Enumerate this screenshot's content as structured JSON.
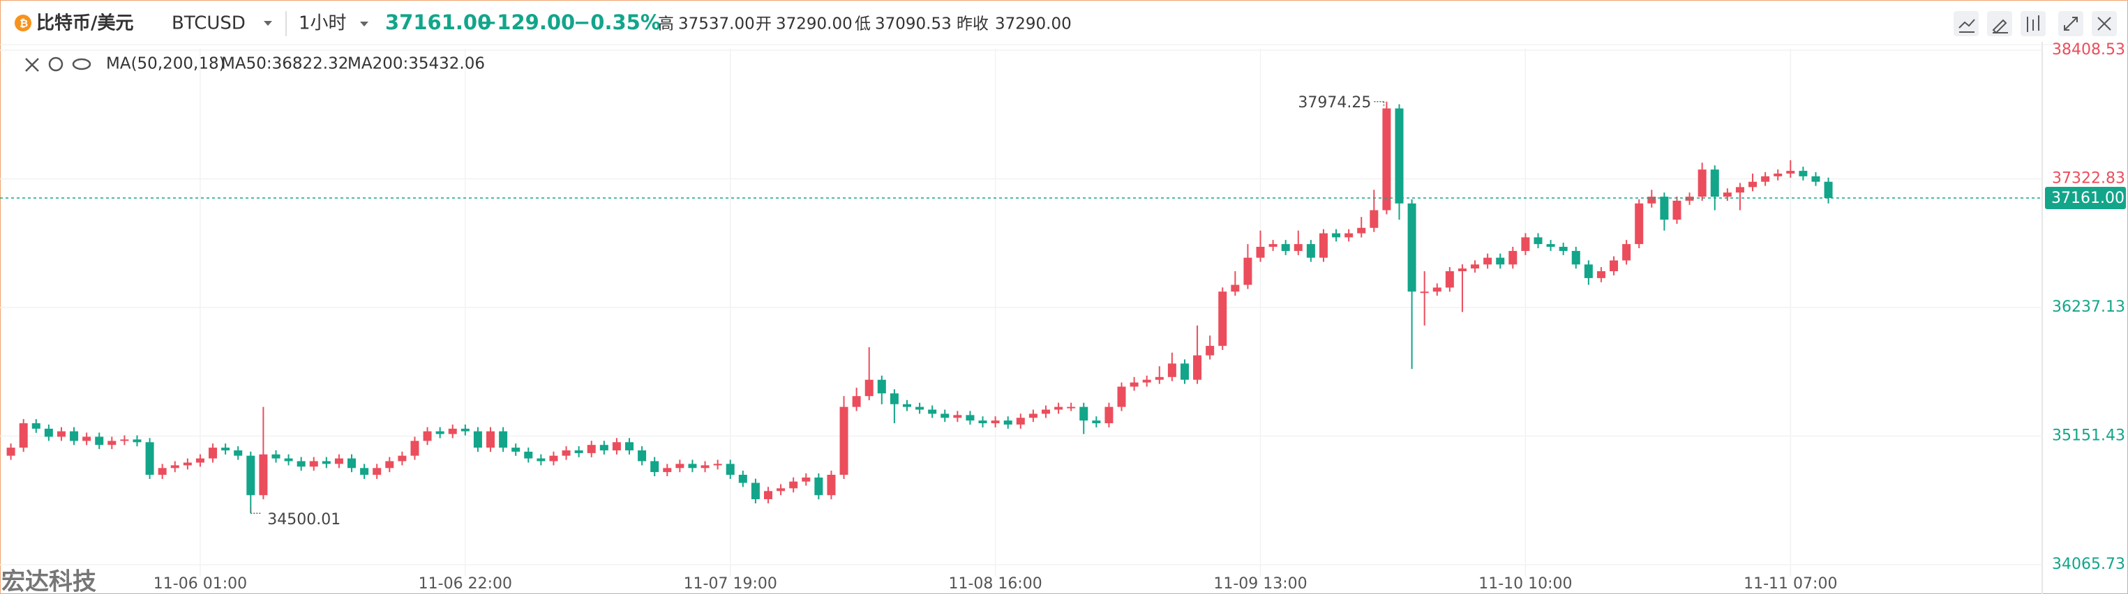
{
  "header": {
    "name": "比特币/美元",
    "symbol": "BTCUSD",
    "interval": "1小时",
    "price": "37161.00",
    "change": "−129.00",
    "change_pct": "−0.35%",
    "high_label": "高",
    "high": "37537.00",
    "open_label": "开",
    "open": "37290.00",
    "low_label": "低",
    "low": "37090.53",
    "prev_close_label": "昨收",
    "prev_close": "37290.00"
  },
  "indicator": {
    "name": "MA(50,200,18)",
    "ma50": "MA50:36822.32",
    "ma200": "MA200:35432.06"
  },
  "watermark": "宏达科技",
  "chart_data": {
    "type": "candlestick",
    "up_color": "#eb4d5c",
    "down_color": "#12a58a",
    "categories": [
      null,
      null,
      null,
      null,
      null,
      null,
      null,
      null,
      null,
      null,
      null,
      null,
      null,
      null,
      null,
      "11-06 01:00",
      null,
      null,
      null,
      null,
      null,
      null,
      null,
      null,
      null,
      null,
      null,
      null,
      null,
      null,
      null,
      null,
      null,
      null,
      null,
      null,
      "11-06 22:00",
      null,
      null,
      null,
      null,
      null,
      null,
      null,
      null,
      null,
      null,
      null,
      null,
      null,
      null,
      null,
      null,
      null,
      null,
      null,
      null,
      "11-07 19:00",
      null,
      null,
      null,
      null,
      null,
      null,
      null,
      null,
      null,
      null,
      null,
      null,
      null,
      null,
      null,
      null,
      null,
      null,
      null,
      null,
      "11-08 16:00",
      null,
      null,
      null,
      null,
      null,
      null,
      null,
      null,
      null,
      null,
      null,
      null,
      null,
      null,
      null,
      null,
      null,
      null,
      null,
      null,
      "11-09 13:00",
      null,
      null,
      null,
      null,
      null,
      null,
      null,
      null,
      null,
      null,
      null,
      null,
      null,
      null,
      null,
      null,
      null,
      null,
      null,
      null,
      "11-10 10:00",
      null,
      null,
      null,
      null,
      null,
      null,
      null,
      null,
      null,
      null,
      null,
      null,
      null,
      null,
      null,
      null,
      null,
      null,
      null,
      null,
      "11-11 07:00",
      null,
      null,
      null
    ],
    "open": [
      34986,
      35054,
      35260,
      35214,
      35146,
      35192,
      35111,
      35146,
      35077,
      35111,
      35123,
      35100,
      34825,
      34882,
      34905,
      34928,
      34963,
      35054,
      35031,
      34986,
      34653,
      34997,
      34963,
      34940,
      34894,
      34940,
      34917,
      34963,
      34882,
      34825,
      34882,
      34940,
      34986,
      35111,
      35192,
      35169,
      35214,
      35192,
      35054,
      35192,
      35054,
      35020,
      34963,
      34940,
      34986,
      35031,
      35008,
      35077,
      35031,
      35100,
      35031,
      34940,
      34848,
      34882,
      34917,
      34882,
      34905,
      34917,
      34825,
      34757,
      34619,
      34688,
      34711,
      34768,
      34802,
      34653,
      34825,
      35398,
      35489,
      35627,
      35512,
      35421,
      35398,
      35375,
      35340,
      35306,
      35329,
      35283,
      35260,
      35283,
      35249,
      35306,
      35340,
      35375,
      35398,
      35398,
      35283,
      35260,
      35398,
      35569,
      35604,
      35627,
      35650,
      35764,
      35627,
      35833,
      35913,
      36371,
      36428,
      36657,
      36749,
      36772,
      36714,
      36772,
      36657,
      36863,
      36829,
      36863,
      36909,
      37058,
      37917,
      37115,
      36371,
      36371,
      36405,
      36543,
      36566,
      36600,
      36657,
      36600,
      36714,
      36829,
      36772,
      36749,
      36714,
      36600,
      36485,
      36543,
      36634,
      36772,
      37115,
      37172,
      36978,
      37138,
      37172,
      37401,
      37172,
      37207,
      37253,
      37298,
      37344,
      37367,
      37390,
      37344,
      37298
    ],
    "high": [
      35089,
      35295,
      35295,
      35249,
      35227,
      35227,
      35181,
      35181,
      35146,
      35158,
      35158,
      35135,
      34917,
      34940,
      34963,
      34998,
      35089,
      35089,
      35066,
      35021,
      35398,
      35032,
      34998,
      34975,
      34975,
      34975,
      34998,
      34998,
      34917,
      34917,
      34975,
      35021,
      35146,
      35227,
      35227,
      35249,
      35249,
      35227,
      35227,
      35227,
      35089,
      35055,
      34998,
      35021,
      35066,
      35066,
      35112,
      35112,
      35135,
      35135,
      35066,
      34975,
      34917,
      34952,
      34952,
      34940,
      34952,
      34952,
      34860,
      34792,
      34723,
      34746,
      34803,
      34837,
      34837,
      34860,
      35489,
      35560,
      35902,
      35662,
      35547,
      35456,
      35433,
      35410,
      35375,
      35364,
      35364,
      35318,
      35318,
      35318,
      35341,
      35375,
      35410,
      35433,
      35433,
      35433,
      35318,
      35433,
      35604,
      35650,
      35662,
      35741,
      35856,
      35799,
      36085,
      36000,
      36406,
      36543,
      36772,
      36886,
      36807,
      36807,
      36886,
      36807,
      36898,
      36898,
      36898,
      37001,
      37230,
      37974.25,
      37952,
      37150,
      36543,
      36440,
      36578,
      36601,
      36635,
      36692,
      36692,
      36749,
      36864,
      36864,
      36807,
      36784,
      36749,
      36635,
      36578,
      36669,
      36807,
      37150,
      37230,
      37207,
      37173,
      37207,
      37459,
      37436,
      37242,
      37288,
      37367,
      37379,
      37402,
      37480,
      37425,
      37379,
      37333
    ],
    "low": [
      34951,
      35019,
      35179,
      35111,
      35111,
      35076,
      35076,
      35042,
      35042,
      35076,
      35065,
      34790,
      34790,
      34847,
      34870,
      34893,
      34928,
      34996,
      34951,
      34500.01,
      34618,
      34928,
      34905,
      34859,
      34859,
      34882,
      34882,
      34847,
      34790,
      34790,
      34847,
      34905,
      34951,
      35076,
      35134,
      35134,
      35157,
      35019,
      35019,
      35019,
      34985,
      34928,
      34905,
      34905,
      34951,
      34973,
      34973,
      34996,
      34996,
      34996,
      34905,
      34813,
      34813,
      34847,
      34847,
      34847,
      34870,
      34790,
      34722,
      34584,
      34584,
      34653,
      34676,
      34733,
      34618,
      34618,
      34790,
      35363,
      35454,
      35420,
      35260,
      35363,
      35340,
      35305,
      35271,
      35271,
      35248,
      35225,
      35225,
      35214,
      35214,
      35271,
      35305,
      35340,
      35363,
      35169,
      35225,
      35225,
      35363,
      35534,
      35569,
      35592,
      35615,
      35592,
      35592,
      35798,
      35878,
      36336,
      36393,
      36622,
      36714,
      36679,
      36679,
      36622,
      36622,
      36794,
      36794,
      36828,
      36874,
      37023,
      36978,
      35718,
      36085,
      36336,
      36370,
      36199,
      36531,
      36565,
      36565,
      36565,
      36679,
      36737,
      36714,
      36679,
      36565,
      36428,
      36450,
      36508,
      36599,
      36737,
      37080,
      36886,
      36943,
      37103,
      37137,
      37058,
      37137,
      37058,
      37218,
      37263,
      37309,
      37332,
      37309,
      37263,
      37115
    ],
    "close": [
      35054,
      35260,
      35214,
      35146,
      35192,
      35111,
      35146,
      35077,
      35111,
      35123,
      35100,
      34825,
      34882,
      34905,
      34928,
      34963,
      35054,
      35031,
      34986,
      34653,
      34997,
      34963,
      34940,
      34894,
      34940,
      34917,
      34963,
      34882,
      34825,
      34882,
      34940,
      34986,
      35111,
      35192,
      35169,
      35214,
      35192,
      35054,
      35192,
      35054,
      35020,
      34963,
      34940,
      34986,
      35031,
      35008,
      35077,
      35031,
      35100,
      35031,
      34940,
      34848,
      34882,
      34917,
      34882,
      34905,
      34917,
      34825,
      34757,
      34619,
      34688,
      34711,
      34768,
      34802,
      34653,
      34825,
      35398,
      35489,
      35627,
      35512,
      35421,
      35398,
      35375,
      35340,
      35306,
      35329,
      35283,
      35260,
      35283,
      35249,
      35306,
      35340,
      35375,
      35398,
      35398,
      35283,
      35260,
      35398,
      35569,
      35604,
      35627,
      35650,
      35764,
      35627,
      35833,
      35913,
      36371,
      36428,
      36657,
      36749,
      36772,
      36714,
      36772,
      36657,
      36863,
      36829,
      36863,
      36909,
      37058,
      37917,
      37115,
      36371,
      36371,
      36405,
      36543,
      36566,
      36600,
      36657,
      36600,
      36714,
      36829,
      36772,
      36749,
      36714,
      36600,
      36485,
      36543,
      36634,
      36772,
      37115,
      37172,
      36978,
      37138,
      37172,
      37401,
      37172,
      37207,
      37253,
      37298,
      37344,
      37367,
      37390,
      37344,
      37298,
      37161
    ],
    "ylim": [
      33966,
      38420
    ],
    "yticks": [
      34065.73,
      35151.43,
      36237.13,
      37322.83,
      38408.53
    ],
    "last_price": {
      "value": 37161,
      "label": "37161.00"
    },
    "annotated_high": 109,
    "annotated_low": 19,
    "grid": true
  }
}
